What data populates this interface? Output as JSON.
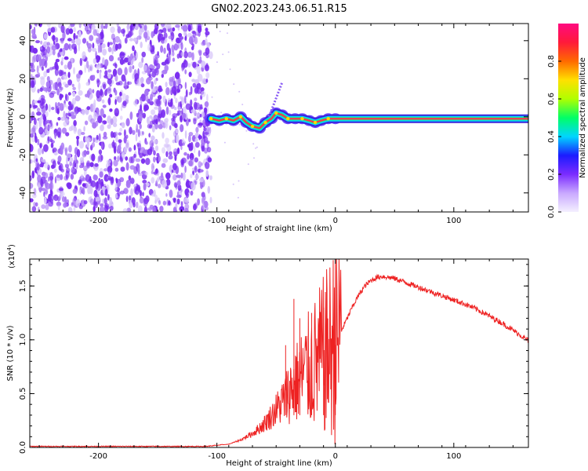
{
  "title": "GN02.2023.243.06.51.R15",
  "colors": {
    "speckle": "#7a2cf0",
    "speckle_light": "#d6c4fa",
    "line_core": "#ff2a55",
    "snr_line": "#ee2222"
  },
  "chart_data": [
    {
      "type": "heatmap",
      "xlabel": "Height of straight line (km)",
      "ylabel": "Frequency (Hz)",
      "xlim": [
        -258,
        163
      ],
      "ylim": [
        -50,
        49
      ],
      "xticks": [
        -200,
        -100,
        0,
        100
      ],
      "yticks": [
        -40,
        -20,
        0,
        20,
        40
      ],
      "noise_region_x": [
        -258,
        -105
      ],
      "signal_track": [
        {
          "x": -105,
          "y": -1
        },
        {
          "x": -98,
          "y": -2
        },
        {
          "x": -92,
          "y": -1
        },
        {
          "x": -86,
          "y": -2
        },
        {
          "x": -80,
          "y": 0
        },
        {
          "x": -75,
          "y": -3
        },
        {
          "x": -70,
          "y": -5
        },
        {
          "x": -64,
          "y": -6
        },
        {
          "x": -59,
          "y": -3
        },
        {
          "x": -54,
          "y": -1
        },
        {
          "x": -50,
          "y": 2
        },
        {
          "x": -45,
          "y": 1
        },
        {
          "x": -40,
          "y": -1
        },
        {
          "x": -34,
          "y": -1
        },
        {
          "x": -28,
          "y": -1
        },
        {
          "x": -22,
          "y": -2
        },
        {
          "x": -17,
          "y": -3
        },
        {
          "x": -12,
          "y": -2
        },
        {
          "x": -6,
          "y": -1
        },
        {
          "x": 0,
          "y": -1
        },
        {
          "x": 10,
          "y": -1
        },
        {
          "x": 163,
          "y": -1
        }
      ],
      "spur": [
        {
          "x": -56,
          "y": 0
        },
        {
          "x": -45,
          "y": 18
        }
      ],
      "colorbar": {
        "label": "Normalized spectral amplitude",
        "range": [
          0,
          1
        ],
        "ticks": [
          "0.0",
          "0.2",
          "0.4",
          "0.6",
          "0.8"
        ],
        "colors": [
          "#f4f0ff",
          "#c9a9ff",
          "#7b2cff",
          "#1b1bff",
          "#00d6ff",
          "#00ff66",
          "#b0ff00",
          "#ffe000",
          "#ff6a00",
          "#ff1a3a",
          "#ff0a80"
        ]
      }
    },
    {
      "type": "line",
      "xlabel": "Height of straight line (km)",
      "ylabel": "SNR (10 * v/v)",
      "yscale_label": "(x10",
      "yscale_exp": "4",
      "xlim": [
        -258,
        163
      ],
      "ylim": [
        0,
        1.75
      ],
      "xticks": [
        -200,
        -100,
        0,
        100
      ],
      "yticks": [
        "0.0",
        "0.5",
        "1.0",
        "1.5"
      ],
      "series": [
        {
          "x": [
            -258,
            -200,
            -150,
            -110,
            -100,
            -90,
            -85,
            -80,
            -75,
            -70,
            -65,
            -60,
            -55,
            -50,
            -45,
            -40,
            -35,
            -30,
            -25,
            -20,
            -15,
            -10,
            -5,
            -2,
            0,
            5,
            10,
            15,
            20,
            25,
            30,
            35,
            40,
            50,
            60,
            70,
            80,
            90,
            100,
            110,
            120,
            130,
            140,
            150,
            163
          ],
          "y": [
            0.01,
            0.01,
            0.01,
            0.01,
            0.02,
            0.03,
            0.05,
            0.07,
            0.1,
            0.13,
            0.17,
            0.22,
            0.28,
            0.35,
            0.42,
            0.5,
            0.58,
            0.64,
            0.7,
            0.75,
            0.8,
            0.85,
            0.9,
            0.95,
            1.0,
            1.08,
            1.2,
            1.32,
            1.42,
            1.5,
            1.55,
            1.58,
            1.59,
            1.57,
            1.53,
            1.49,
            1.45,
            1.41,
            1.37,
            1.33,
            1.28,
            1.22,
            1.16,
            1.09,
            0.99
          ],
          "spikes": [
            {
              "x": -42,
              "y": 0.95
            },
            {
              "x": -35,
              "y": 1.38
            },
            {
              "x": -30,
              "y": 1.2
            },
            {
              "x": -20,
              "y": 1.25
            },
            {
              "x": -10,
              "y": 1.3
            },
            {
              "x": 0,
              "y": 1.75
            }
          ]
        }
      ]
    }
  ]
}
